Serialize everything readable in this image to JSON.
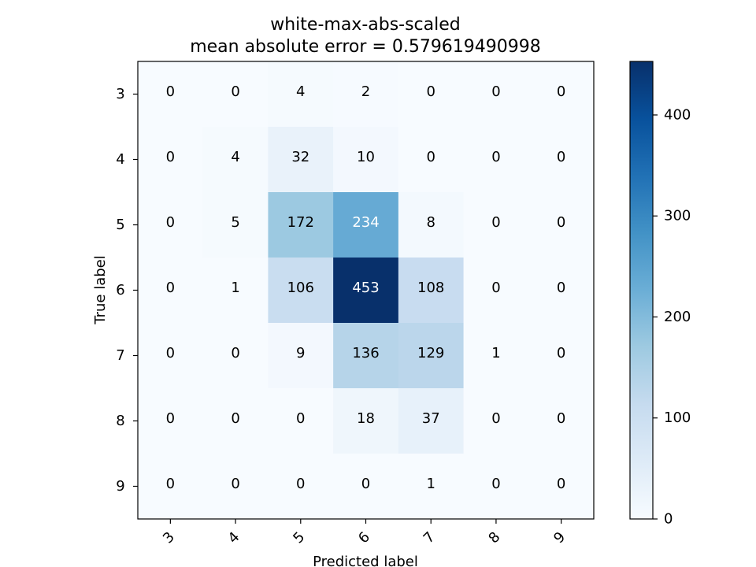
{
  "chart_data": {
    "type": "heatmap",
    "title": "white-max-abs-scaled",
    "subtitle": "mean absolute error = 0.579619490998",
    "xlabel": "Predicted label",
    "ylabel": "True label",
    "x_categories": [
      "3",
      "4",
      "5",
      "6",
      "7",
      "8",
      "9"
    ],
    "y_categories": [
      "3",
      "4",
      "5",
      "6",
      "7",
      "8",
      "9"
    ],
    "matrix": [
      [
        0,
        0,
        4,
        2,
        0,
        0,
        0
      ],
      [
        0,
        4,
        32,
        10,
        0,
        0,
        0
      ],
      [
        0,
        5,
        172,
        234,
        8,
        0,
        0
      ],
      [
        0,
        1,
        106,
        453,
        108,
        0,
        0
      ],
      [
        0,
        0,
        9,
        136,
        129,
        1,
        0
      ],
      [
        0,
        0,
        0,
        18,
        37,
        0,
        0
      ],
      [
        0,
        0,
        0,
        0,
        1,
        0,
        0
      ]
    ],
    "colormap": "Blues",
    "color_range": [
      0,
      453
    ],
    "colorbar_ticks": [
      "0",
      "100",
      "200",
      "300",
      "400"
    ],
    "colorbar_tick_values": [
      0,
      100,
      200,
      300,
      400
    ],
    "grid": false,
    "legend": "colorbar-right"
  }
}
